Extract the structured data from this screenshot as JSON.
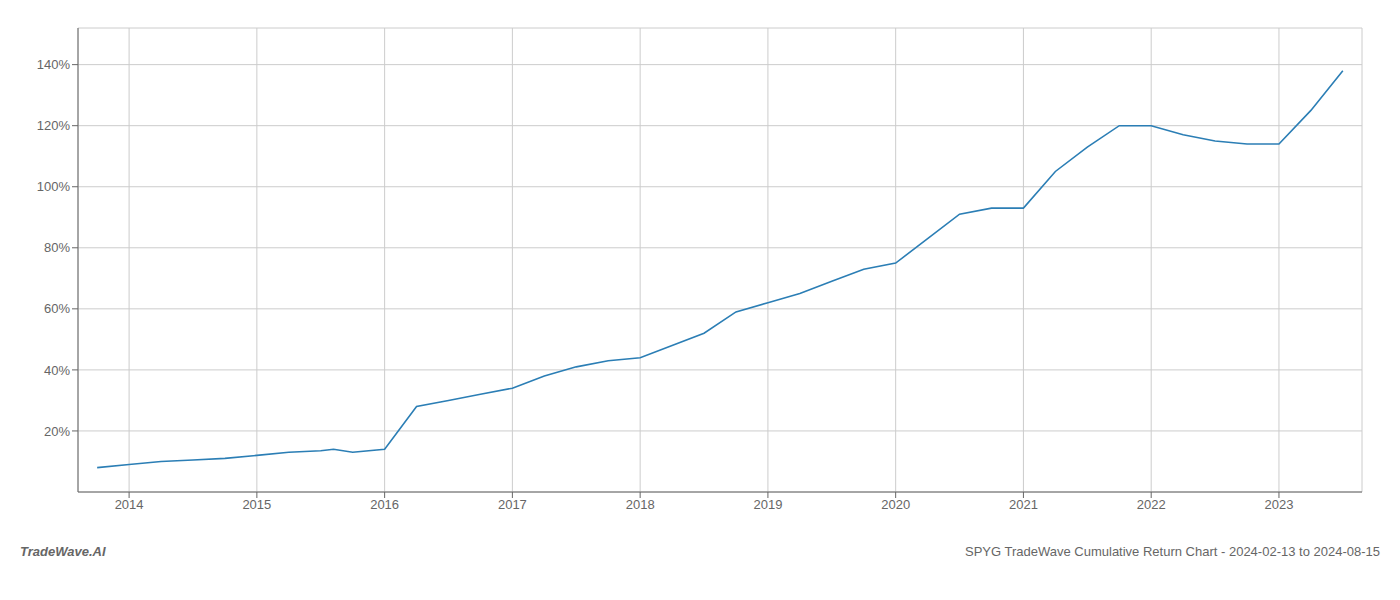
{
  "chart_data": {
    "type": "line",
    "title": "SPYG TradeWave Cumulative Return Chart - 2024-02-13 to 2024-08-15",
    "annotations": [
      "TradeWave.AI"
    ],
    "x": [
      2013.75,
      2014.0,
      2014.25,
      2014.5,
      2014.75,
      2015.0,
      2015.25,
      2015.5,
      2015.6,
      2015.75,
      2016.0,
      2016.25,
      2016.5,
      2016.75,
      2017.0,
      2017.25,
      2017.5,
      2017.75,
      2018.0,
      2018.25,
      2018.5,
      2018.75,
      2019.0,
      2019.25,
      2019.5,
      2019.75,
      2020.0,
      2020.25,
      2020.5,
      2020.75,
      2021.0,
      2021.25,
      2021.5,
      2021.75,
      2022.0,
      2022.25,
      2022.5,
      2022.75,
      2023.0,
      2023.25,
      2023.5
    ],
    "values": [
      8,
      9,
      10,
      10.5,
      11,
      12,
      13,
      13.5,
      14,
      13,
      14,
      28,
      30,
      32,
      34,
      38,
      41,
      43,
      44,
      48,
      52,
      59,
      62,
      65,
      69,
      73,
      75,
      83,
      91,
      93,
      93,
      105,
      113,
      120,
      120,
      117,
      115,
      114,
      114,
      125,
      138
    ],
    "color": "#2b7eb5",
    "xlim": [
      2013.6,
      2023.65
    ],
    "xticks": [
      2014,
      2015,
      2016,
      2017,
      2018,
      2019,
      2020,
      2021,
      2022,
      2023
    ],
    "ylim": [
      0,
      152
    ],
    "yticks": [
      {
        "value": 20,
        "label": "20%"
      },
      {
        "value": 40,
        "label": "40%"
      },
      {
        "value": 60,
        "label": "60%"
      },
      {
        "value": 80,
        "label": "80%"
      },
      {
        "value": 100,
        "label": "100%"
      },
      {
        "value": 120,
        "label": "120%"
      },
      {
        "value": 140,
        "label": "140%"
      }
    ],
    "grid": true
  }
}
